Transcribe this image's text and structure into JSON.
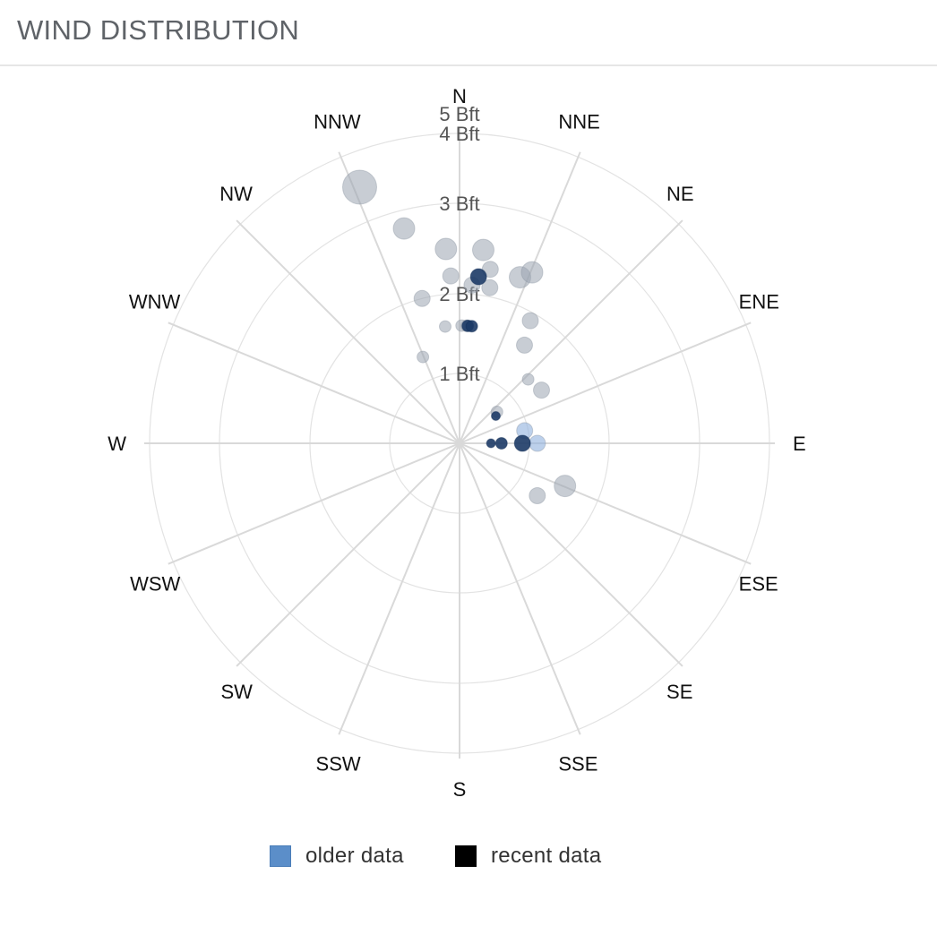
{
  "header": {
    "title": "WIND DISTRIBUTION"
  },
  "chart_data": {
    "type": "scatter",
    "subtype": "polar-bubble",
    "title": "WIND DISTRIBUTION",
    "directions": [
      "N",
      "NNE",
      "NE",
      "ENE",
      "E",
      "ESE",
      "SE",
      "SSE",
      "S",
      "SSW",
      "SW",
      "WSW",
      "W",
      "WNW",
      "NW",
      "NNW"
    ],
    "rings": [
      {
        "value": 1,
        "label": "1 Bft"
      },
      {
        "value": 2,
        "label": "2 Bft"
      },
      {
        "value": 3,
        "label": "3 Bft"
      },
      {
        "value": 4,
        "label": "4 Bft"
      },
      {
        "value": 5,
        "label": "5 Bft"
      }
    ],
    "rlim": [
      0,
      5
    ],
    "grid": true,
    "legend_position": "bottom",
    "series": [
      {
        "name": "older data",
        "color": "#5b8ec9",
        "points": [
          {
            "dir": 338.7,
            "r": 3.5,
            "w": 5
          },
          {
            "dir": 345.5,
            "r": 2.8,
            "w": 4
          },
          {
            "dir": 356.0,
            "r": 2.5,
            "w": 4
          },
          {
            "dir": 7.0,
            "r": 2.5,
            "w": 4
          },
          {
            "dir": 10.0,
            "r": 2.3,
            "w": 3
          },
          {
            "dir": 20.0,
            "r": 2.3,
            "w": 4
          },
          {
            "dir": 23.0,
            "r": 2.4,
            "w": 4
          },
          {
            "dir": 357.0,
            "r": 2.2,
            "w": 3
          },
          {
            "dir": 4.5,
            "r": 2.1,
            "w": 3
          },
          {
            "dir": 11.0,
            "r": 2.1,
            "w": 3
          },
          {
            "dir": 345.5,
            "r": 2.0,
            "w": 3
          },
          {
            "dir": 30.0,
            "r": 1.9,
            "w": 3
          },
          {
            "dir": 33.5,
            "r": 1.6,
            "w": 3
          },
          {
            "dir": 353.0,
            "r": 1.6,
            "w": 2
          },
          {
            "dir": 1.0,
            "r": 1.6,
            "w": 2
          },
          {
            "dir": 3.5,
            "r": 1.6,
            "w": 2
          },
          {
            "dir": 337.0,
            "r": 1.3,
            "w": 2
          },
          {
            "dir": 47.0,
            "r": 1.3,
            "w": 2
          },
          {
            "dir": 57.0,
            "r": 1.35,
            "w": 3
          },
          {
            "dir": 50.0,
            "r": 0.7,
            "w": 2
          },
          {
            "dir": 112.0,
            "r": 1.55,
            "w": 4
          },
          {
            "dir": 124.0,
            "r": 1.3,
            "w": 3
          },
          {
            "dir": 79.0,
            "r": 0.95,
            "w": 3
          },
          {
            "dir": 90.0,
            "r": 1.1,
            "w": 3
          }
        ]
      },
      {
        "name": "recent data",
        "color": "#000000",
        "points": [
          {
            "dir": 4.0,
            "r": 1.6,
            "w": 2
          },
          {
            "dir": 6.0,
            "r": 1.6,
            "w": 2
          },
          {
            "dir": 6.5,
            "r": 2.2,
            "w": 3
          },
          {
            "dir": 53.0,
            "r": 0.65,
            "w": 1
          },
          {
            "dir": 90.0,
            "r": 0.9,
            "w": 3
          },
          {
            "dir": 90.0,
            "r": 0.6,
            "w": 2
          },
          {
            "dir": 90.0,
            "r": 0.45,
            "w": 1
          }
        ]
      }
    ]
  }
}
